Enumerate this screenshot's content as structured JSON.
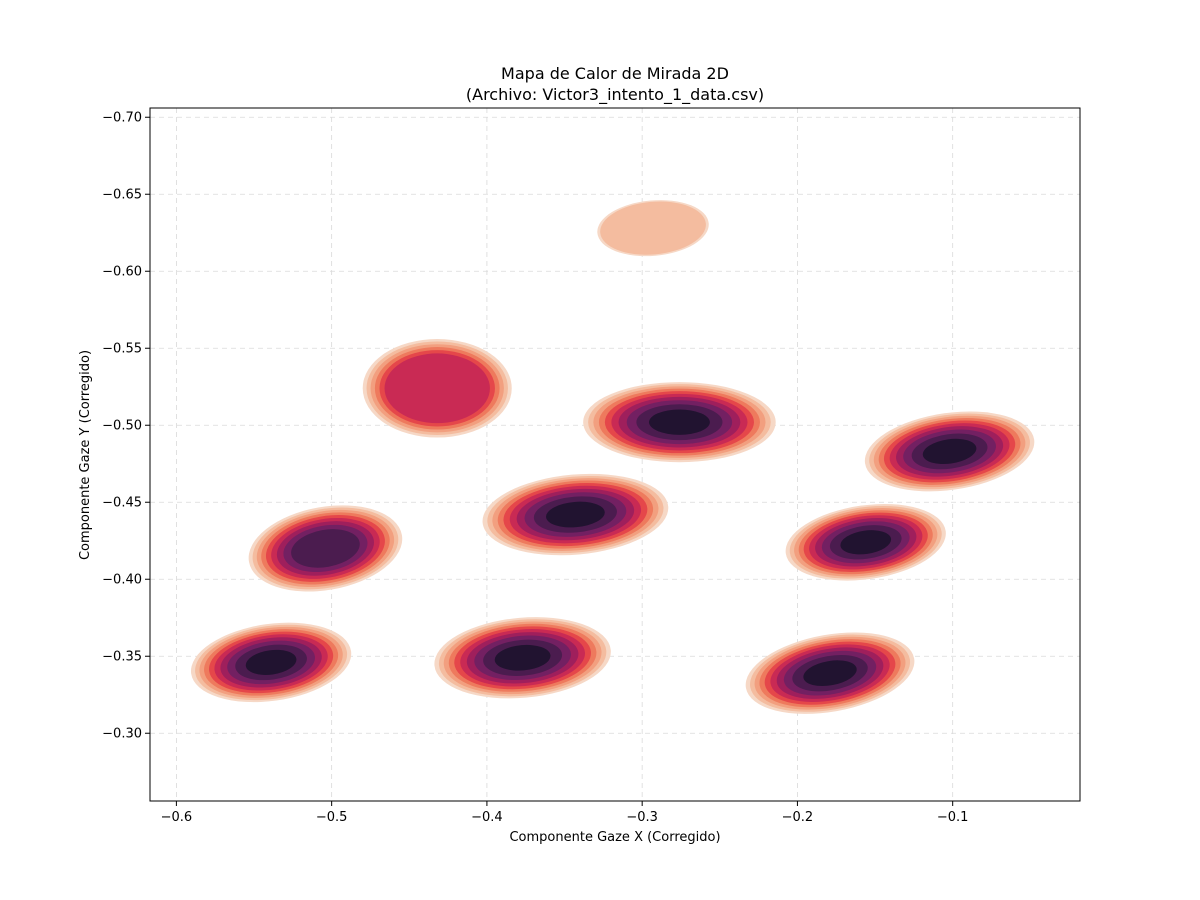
{
  "chart_data": {
    "type": "heatmap",
    "subtype": "kde_filled_contour",
    "title": "Mapa de Calor de Mirada 2D",
    "subtitle": "(Archivo: Victor3_intento_1_data.csv)",
    "xlabel": "Componente Gaze X (Corregido)",
    "ylabel": "Componente Gaze Y (Corregido)",
    "xlim": [
      -0.617,
      -0.018
    ],
    "ylim": [
      -0.256,
      -0.706
    ],
    "y_inverted": true,
    "xticks": [
      {
        "value": -0.6,
        "label": "−0.6"
      },
      {
        "value": -0.5,
        "label": "−0.5"
      },
      {
        "value": -0.4,
        "label": "−0.4"
      },
      {
        "value": -0.3,
        "label": "−0.3"
      },
      {
        "value": -0.2,
        "label": "−0.2"
      },
      {
        "value": -0.1,
        "label": "−0.1"
      }
    ],
    "yticks": [
      {
        "value": -0.7,
        "label": "−0.70"
      },
      {
        "value": -0.65,
        "label": "−0.65"
      },
      {
        "value": -0.6,
        "label": "−0.60"
      },
      {
        "value": -0.55,
        "label": "−0.55"
      },
      {
        "value": -0.5,
        "label": "−0.50"
      },
      {
        "value": -0.45,
        "label": "−0.45"
      },
      {
        "value": -0.4,
        "label": "−0.40"
      },
      {
        "value": -0.35,
        "label": "−0.35"
      },
      {
        "value": -0.3,
        "label": "−0.30"
      }
    ],
    "grid": true,
    "colormap": [
      "#f6d8c6",
      "#f4bc9f",
      "#f29f7f",
      "#ee7a5d",
      "#e5474a",
      "#c92a54",
      "#9f1f5c",
      "#732062",
      "#4b1c4f",
      "#211330"
    ],
    "clusters": [
      {
        "x": -0.432,
        "y": -0.524,
        "peak_level": 6,
        "sx": 0.048,
        "sy": 0.032,
        "angle": 0
      },
      {
        "x": -0.276,
        "y": -0.502,
        "peak_level": 10,
        "sx": 0.062,
        "sy": 0.026,
        "angle": 0
      },
      {
        "x": -0.102,
        "y": -0.483,
        "peak_level": 10,
        "sx": 0.055,
        "sy": 0.025,
        "angle": -8
      },
      {
        "x": -0.343,
        "y": -0.442,
        "peak_level": 10,
        "sx": 0.06,
        "sy": 0.026,
        "angle": -5
      },
      {
        "x": -0.504,
        "y": -0.42,
        "peak_level": 9,
        "sx": 0.05,
        "sy": 0.027,
        "angle": -10
      },
      {
        "x": -0.156,
        "y": -0.424,
        "peak_level": 10,
        "sx": 0.052,
        "sy": 0.024,
        "angle": -8
      },
      {
        "x": -0.539,
        "y": -0.346,
        "peak_level": 10,
        "sx": 0.052,
        "sy": 0.025,
        "angle": -8
      },
      {
        "x": -0.377,
        "y": -0.349,
        "peak_level": 10,
        "sx": 0.057,
        "sy": 0.026,
        "angle": -5
      },
      {
        "x": -0.179,
        "y": -0.339,
        "peak_level": 10,
        "sx": 0.055,
        "sy": 0.025,
        "angle": -10
      },
      {
        "x": -0.293,
        "y": -0.628,
        "peak_level": 2,
        "sx": 0.036,
        "sy": 0.018,
        "angle": -5
      }
    ]
  }
}
